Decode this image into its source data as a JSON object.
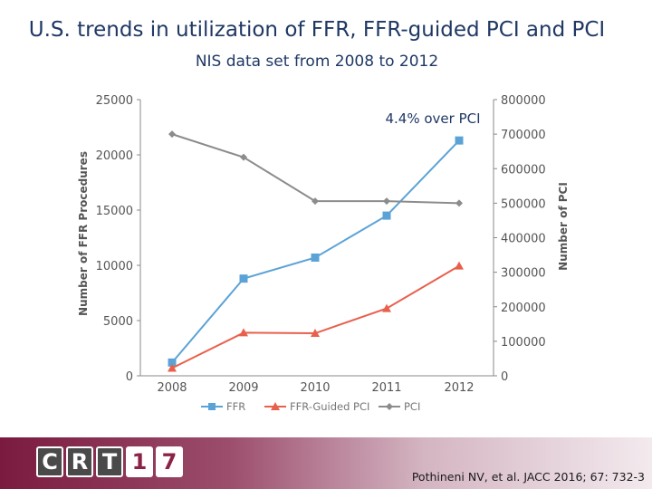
{
  "title": "U.S. trends in utilization of FFR, FFR-guided PCI and PCI",
  "subtitle": "NIS data set from 2008 to 2012",
  "chart_data": {
    "type": "line",
    "categories": [
      "2008",
      "2009",
      "2010",
      "2011",
      "2012"
    ],
    "y_left": {
      "label": "Number of FFR Procedures",
      "lim": [
        0,
        25000
      ],
      "ticks": [
        "0",
        "5000",
        "10000",
        "15000",
        "20000",
        "25000"
      ]
    },
    "y_right": {
      "label": "Number of PCI",
      "lim": [
        0,
        800000
      ],
      "ticks": [
        "0",
        "100000",
        "200000",
        "300000",
        "400000",
        "500000",
        "600000",
        "700000",
        "800000"
      ]
    },
    "series": [
      {
        "name": "FFR",
        "axis": "left",
        "color": "#5ba3d6",
        "marker": "square",
        "values": [
          1200,
          8800,
          10700,
          14500,
          21300
        ]
      },
      {
        "name": "FFR-Guided PCI",
        "axis": "left",
        "color": "#e8604c",
        "marker": "triangle",
        "values": [
          700,
          3900,
          3850,
          6100,
          9950
        ]
      },
      {
        "name": "PCI",
        "axis": "right",
        "color": "#8c8c8c",
        "marker": "diamond",
        "values": [
          700000,
          633000,
          506000,
          506000,
          500000
        ]
      }
    ],
    "annotation": "4.4% over PCI",
    "legend": "bottom",
    "grid": false
  },
  "footer": {
    "logo_letters": [
      "C",
      "R",
      "T",
      "1",
      "7"
    ],
    "citation": "Pothineni NV, et al. JACC 2016; 67: 732-3"
  }
}
